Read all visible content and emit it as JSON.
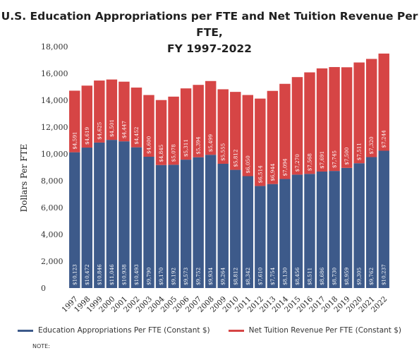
{
  "chart_data": {
    "type": "bar",
    "stacked": true,
    "title_line1": "U.S. Education Appropriations per FTE and Net Tuition Revenue Per FTE,",
    "title_line2": "FY 1997-2022",
    "ylabel": "Dollars Per FTE",
    "xlabel": "",
    "ylim": [
      0,
      18000
    ],
    "yticks": [
      "0",
      "2,000",
      "4,000",
      "6,000",
      "8,000",
      "10,000",
      "12,000",
      "14,000",
      "16,000",
      "18,000"
    ],
    "grid": false,
    "legend_position": "bottom",
    "categories": [
      "1997",
      "1998",
      "1999",
      "2000",
      "2001",
      "2002",
      "2003",
      "2004",
      "2005",
      "2006",
      "2007",
      "2008",
      "2009",
      "2010",
      "2011",
      "2012",
      "2013",
      "2014",
      "2015",
      "2016",
      "2017",
      "2018",
      "2019",
      "2020",
      "2021",
      "2022"
    ],
    "series": [
      {
        "name": "Education Appropriations Per FTE (Constant $)",
        "color": "#3d5a8a",
        "values": [
          10123,
          10472,
          10846,
          11046,
          10938,
          10493,
          9790,
          9170,
          9192,
          9573,
          9752,
          9934,
          9264,
          8812,
          8342,
          7610,
          7754,
          8130,
          8456,
          8511,
          8686,
          8730,
          8959,
          9305,
          9762,
          10237
        ],
        "labels": [
          "$10,123",
          "$10,472",
          "$10,846",
          "$11,046",
          "$10,938",
          "$10,493",
          "$9,790",
          "$9,170",
          "$9,192",
          "$9,573",
          "$9,752",
          "$9,934",
          "$9,264",
          "$8,812",
          "$8,342",
          "$7,610",
          "$7,754",
          "$8,130",
          "$8,456",
          "$8,511",
          "$8,686",
          "$8,730",
          "$8,959",
          "$9,305",
          "$9,762",
          "$10,237"
        ]
      },
      {
        "name": "Net Tuition Revenue Per FTE (Constant $)",
        "color": "#d64545",
        "values": [
          4591,
          4619,
          4625,
          4501,
          4447,
          4452,
          4600,
          4845,
          5078,
          5311,
          5394,
          5499,
          5555,
          5812,
          6050,
          6514,
          6944,
          7094,
          7270,
          7568,
          7691,
          7745,
          7500,
          7511,
          7320,
          7244
        ],
        "labels": [
          "$4,591",
          "$4,619",
          "$4,625",
          "$4,501",
          "$4,447",
          "$4,452",
          "$4,600",
          "$4,845",
          "$5,078",
          "$5,311",
          "$5,394",
          "$5,499",
          "$5,555",
          "$5,812",
          "$6,050",
          "$6,514",
          "$6,944",
          "$7,094",
          "$7,270",
          "$7,568",
          "$7,691",
          "$7,745",
          "$7,500",
          "$7,511",
          "$7,320",
          "$7,244"
        ]
      }
    ]
  },
  "footer": {
    "note": "NOTE:"
  }
}
